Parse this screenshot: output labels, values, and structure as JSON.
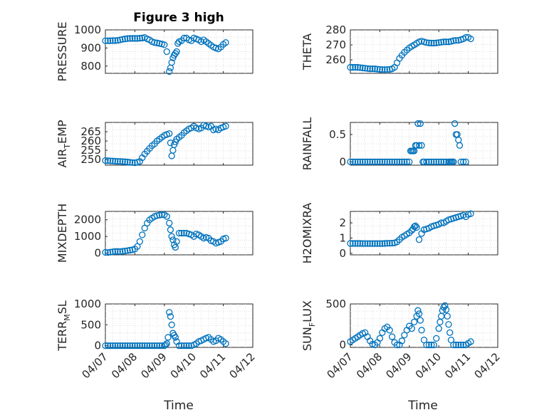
{
  "figure_title": "Figure 3 high",
  "xlabel": "Time",
  "marker_color": "#0072bd",
  "chart_data": [
    {
      "type": "scatter",
      "ylabel_text": "PRESSURE",
      "ylim": [
        760,
        1000
      ],
      "yticks": [
        800,
        900,
        1000
      ],
      "xlim": [
        0,
        5
      ],
      "x": [
        0,
        0.083,
        0.167,
        0.25,
        0.333,
        0.417,
        0.5,
        0.583,
        0.667,
        0.75,
        0.833,
        0.917,
        1.0,
        1.083,
        1.167,
        1.25,
        1.333,
        1.417,
        1.5,
        1.583,
        1.667,
        1.75,
        1.833,
        1.917,
        2.0,
        2.083,
        2.167,
        2.208,
        2.25,
        2.292,
        2.333,
        2.375,
        2.417,
        2.458,
        2.5,
        2.583,
        2.667,
        2.75,
        2.833,
        2.917,
        3.0,
        3.083,
        3.167,
        3.25,
        3.333,
        3.417,
        3.5,
        3.583,
        3.667,
        3.75,
        3.833,
        3.917,
        4.0,
        4.083
      ],
      "y": [
        940,
        940,
        940,
        941,
        941,
        942,
        945,
        948,
        950,
        952,
        953,
        953,
        953,
        953,
        954,
        955,
        958,
        950,
        945,
        935,
        930,
        928,
        925,
        922,
        918,
        880,
        770,
        790,
        820,
        845,
        860,
        870,
        880,
        925,
        935,
        940,
        955,
        955,
        945,
        940,
        955,
        950,
        945,
        935,
        945,
        935,
        925,
        915,
        905,
        900,
        895,
        905,
        920,
        930
      ]
    },
    {
      "type": "scatter",
      "ylabel_text": "THETA",
      "ylim": [
        251,
        280
      ],
      "yticks": [
        260,
        270,
        280
      ],
      "xlim": [
        0,
        5
      ],
      "x": [
        0,
        0.083,
        0.167,
        0.25,
        0.333,
        0.417,
        0.5,
        0.583,
        0.667,
        0.75,
        0.833,
        0.917,
        1.0,
        1.083,
        1.167,
        1.25,
        1.333,
        1.417,
        1.5,
        1.583,
        1.667,
        1.75,
        1.833,
        1.917,
        2.0,
        2.083,
        2.167,
        2.25,
        2.333,
        2.417,
        2.5,
        2.583,
        2.667,
        2.75,
        2.833,
        2.917,
        3.0,
        3.083,
        3.167,
        3.25,
        3.333,
        3.417,
        3.5,
        3.583,
        3.667,
        3.75,
        3.833,
        3.917,
        4.0,
        4.083
      ],
      "y": [
        255,
        255,
        255,
        255,
        254.8,
        254.6,
        254.4,
        254.2,
        254,
        254,
        254,
        253.8,
        253.6,
        253.5,
        253.5,
        253.5,
        253.6,
        254,
        255,
        258,
        261,
        263,
        265,
        266.5,
        268,
        269,
        270,
        271,
        272,
        272.5,
        272,
        271.5,
        271.3,
        271.2,
        271.2,
        271.3,
        271.5,
        271.8,
        272,
        272,
        272,
        272.3,
        272.8,
        273,
        273,
        273.5,
        274,
        275,
        275,
        274
      ]
    },
    {
      "type": "scatter",
      "ylabel_text": "AIR",
      "ylabel_sub": "T",
      "ylabel_rest": "EMP",
      "ylim": [
        247,
        270
      ],
      "yticks": [
        250,
        255,
        260,
        265
      ],
      "xlim": [
        0,
        5
      ],
      "x": [
        0,
        0.083,
        0.167,
        0.25,
        0.333,
        0.417,
        0.5,
        0.583,
        0.667,
        0.75,
        0.833,
        0.917,
        1.0,
        1.083,
        1.167,
        1.25,
        1.333,
        1.417,
        1.5,
        1.583,
        1.667,
        1.75,
        1.833,
        1.917,
        2.0,
        2.083,
        2.167,
        2.208,
        2.25,
        2.292,
        2.333,
        2.375,
        2.417,
        2.5,
        2.583,
        2.667,
        2.75,
        2.833,
        2.917,
        3.0,
        3.083,
        3.167,
        3.25,
        3.333,
        3.417,
        3.5,
        3.583,
        3.667,
        3.75,
        3.833,
        3.917,
        4.0,
        4.083
      ],
      "y": [
        249.5,
        249.4,
        249.3,
        249.2,
        249.1,
        249,
        249,
        248.9,
        248.8,
        248.7,
        248.5,
        248.4,
        248.3,
        248.5,
        249,
        251,
        253,
        254.5,
        256,
        257.5,
        258.5,
        260,
        261,
        262,
        263,
        263.5,
        264,
        259,
        252,
        255,
        258,
        259.5,
        261,
        262,
        263,
        264.5,
        265.5,
        266.5,
        267,
        268,
        267,
        266.5,
        267,
        268.5,
        268,
        267.5,
        268,
        266,
        266.5,
        266,
        267,
        267.5,
        268
      ]
    },
    {
      "type": "scatter",
      "ylabel_text": "RAINFALL",
      "ylim": [
        -0.06,
        0.72
      ],
      "yticks": [
        0,
        0.5
      ],
      "ytick_labels": [
        "0",
        "0.5"
      ],
      "xlim": [
        0,
        5
      ],
      "x": [
        0,
        0.083,
        0.167,
        0.25,
        0.333,
        0.417,
        0.5,
        0.583,
        0.667,
        0.75,
        0.833,
        0.917,
        1.0,
        1.083,
        1.167,
        1.25,
        1.333,
        1.417,
        1.5,
        1.583,
        1.667,
        1.75,
        1.833,
        1.917,
        2.0,
        2.042,
        2.083,
        2.125,
        2.167,
        2.208,
        2.25,
        2.292,
        2.333,
        2.375,
        2.417,
        2.458,
        2.5,
        2.583,
        2.667,
        2.75,
        2.833,
        2.917,
        3.0,
        3.083,
        3.167,
        3.25,
        3.333,
        3.375,
        3.417,
        3.458,
        3.5,
        3.542,
        3.583,
        3.625,
        3.667,
        3.708,
        3.75,
        3.833,
        3.917
      ],
      "y": [
        0,
        0,
        0,
        0,
        0,
        0,
        0,
        0,
        0,
        0,
        0,
        0,
        0,
        0,
        0,
        0,
        0,
        0,
        0,
        0,
        0,
        0,
        0,
        0,
        0,
        0.2,
        0.2,
        0.2,
        0.2,
        0.3,
        0.3,
        0.7,
        0.3,
        0.7,
        0.3,
        0,
        0,
        0,
        0,
        0,
        0,
        0,
        0,
        0,
        0,
        0,
        0,
        0,
        0,
        0,
        0,
        0.7,
        0.5,
        0.5,
        0.4,
        0.3,
        0,
        0,
        0
      ]
    },
    {
      "type": "scatter",
      "ylabel_text": "MIXDEPTH",
      "ylim": [
        -100,
        2500
      ],
      "yticks": [
        0,
        1000,
        2000
      ],
      "xlim": [
        0,
        5
      ],
      "x": [
        0,
        0.083,
        0.167,
        0.25,
        0.333,
        0.417,
        0.5,
        0.583,
        0.667,
        0.75,
        0.833,
        0.917,
        1.0,
        1.083,
        1.167,
        1.25,
        1.333,
        1.417,
        1.5,
        1.583,
        1.667,
        1.75,
        1.833,
        1.917,
        2.0,
        2.083,
        2.167,
        2.208,
        2.25,
        2.292,
        2.333,
        2.375,
        2.417,
        2.5,
        2.583,
        2.667,
        2.75,
        2.833,
        2.917,
        3.0,
        3.083,
        3.167,
        3.25,
        3.333,
        3.417,
        3.5,
        3.583,
        3.667,
        3.75,
        3.833,
        3.917,
        4.0,
        4.083
      ],
      "y": [
        50,
        40,
        60,
        80,
        100,
        100,
        90,
        110,
        130,
        150,
        180,
        200,
        250,
        400,
        700,
        1100,
        1500,
        1800,
        2000,
        2100,
        2200,
        2250,
        2280,
        2300,
        2300,
        2200,
        1800,
        1400,
        1000,
        800,
        500,
        350,
        700,
        1200,
        1200,
        1200,
        1200,
        1150,
        1100,
        1000,
        1150,
        1100,
        1000,
        900,
        950,
        900,
        750,
        700,
        600,
        650,
        700,
        850,
        900
      ]
    },
    {
      "type": "scatter",
      "ylabel_text": "H2OMIXRA",
      "ylim": [
        -0.1,
        2.75
      ],
      "yticks": [
        0,
        1,
        2
      ],
      "xlim": [
        0,
        5
      ],
      "x": [
        0,
        0.083,
        0.167,
        0.25,
        0.333,
        0.417,
        0.5,
        0.583,
        0.667,
        0.75,
        0.833,
        0.917,
        1.0,
        1.083,
        1.167,
        1.25,
        1.333,
        1.417,
        1.5,
        1.583,
        1.667,
        1.75,
        1.833,
        1.917,
        2.0,
        2.083,
        2.125,
        2.167,
        2.208,
        2.25,
        2.333,
        2.417,
        2.5,
        2.583,
        2.667,
        2.75,
        2.833,
        2.917,
        3.0,
        3.083,
        3.167,
        3.25,
        3.333,
        3.417,
        3.5,
        3.583,
        3.667,
        3.75,
        3.833,
        3.917,
        4.0,
        4.083
      ],
      "y": [
        0.65,
        0.65,
        0.65,
        0.65,
        0.65,
        0.64,
        0.64,
        0.64,
        0.64,
        0.64,
        0.64,
        0.64,
        0.64,
        0.64,
        0.65,
        0.66,
        0.66,
        0.67,
        0.68,
        0.75,
        0.9,
        1.05,
        1.15,
        1.25,
        1.35,
        1.5,
        1.6,
        1.75,
        1.8,
        1.7,
        0.9,
        1.3,
        1.55,
        1.6,
        1.65,
        1.75,
        1.8,
        1.85,
        1.9,
        2.0,
        2.0,
        2.1,
        2.2,
        2.25,
        2.3,
        2.35,
        2.4,
        2.45,
        2.5,
        2.4,
        2.55,
        2.6
      ]
    },
    {
      "type": "scatter",
      "ylabel_text": "TERR",
      "ylabel_sub": "M",
      "ylabel_rest": "SL",
      "ylim": [
        -40,
        1000
      ],
      "yticks": [
        0,
        500,
        1000
      ],
      "xlim": [
        0,
        5
      ],
      "x": [
        0,
        0.083,
        0.167,
        0.25,
        0.333,
        0.417,
        0.5,
        0.583,
        0.667,
        0.75,
        0.833,
        0.917,
        1.0,
        1.083,
        1.167,
        1.25,
        1.333,
        1.417,
        1.5,
        1.583,
        1.667,
        1.75,
        1.833,
        1.917,
        2.0,
        2.042,
        2.083,
        2.125,
        2.167,
        2.208,
        2.25,
        2.292,
        2.333,
        2.375,
        2.417,
        2.5,
        2.583,
        2.667,
        2.75,
        2.833,
        2.917,
        3.0,
        3.083,
        3.167,
        3.25,
        3.333,
        3.417,
        3.5,
        3.583,
        3.667,
        3.75,
        3.833,
        3.917,
        4.0,
        4.083
      ],
      "y": [
        0,
        0,
        0,
        0,
        0,
        0,
        0,
        0,
        0,
        0,
        0,
        0,
        0,
        0,
        0,
        0,
        0,
        0,
        0,
        0,
        0,
        0,
        0,
        0,
        0,
        20,
        50,
        200,
        800,
        700,
        500,
        300,
        250,
        200,
        100,
        0,
        0,
        0,
        0,
        0,
        0,
        20,
        50,
        100,
        120,
        150,
        180,
        200,
        150,
        100,
        120,
        180,
        150,
        100,
        50
      ]
    },
    {
      "type": "scatter",
      "ylabel_text": "SUN",
      "ylabel_sub": "F",
      "ylabel_rest": "LUX",
      "ylim": [
        -30,
        500
      ],
      "yticks": [
        0,
        500
      ],
      "xlim": [
        0,
        5
      ],
      "x": [
        0,
        0.083,
        0.167,
        0.25,
        0.333,
        0.417,
        0.5,
        0.583,
        0.667,
        0.75,
        0.833,
        0.917,
        1.0,
        1.083,
        1.167,
        1.25,
        1.333,
        1.417,
        1.5,
        1.583,
        1.667,
        1.75,
        1.833,
        1.917,
        2.0,
        2.083,
        2.167,
        2.25,
        2.292,
        2.333,
        2.375,
        2.417,
        2.5,
        2.583,
        2.667,
        2.75,
        2.833,
        2.917,
        3.0,
        3.042,
        3.083,
        3.125,
        3.167,
        3.208,
        3.25,
        3.292,
        3.333,
        3.375,
        3.417,
        3.5,
        3.583,
        3.667,
        3.75,
        3.833,
        3.917,
        4.0,
        4.083
      ],
      "y": [
        40,
        60,
        80,
        100,
        120,
        140,
        150,
        100,
        50,
        10,
        0,
        30,
        80,
        150,
        200,
        220,
        180,
        100,
        30,
        0,
        0,
        50,
        120,
        180,
        230,
        200,
        280,
        350,
        420,
        380,
        300,
        180,
        60,
        0,
        0,
        0,
        0,
        80,
        200,
        280,
        350,
        420,
        460,
        480,
        430,
        350,
        250,
        150,
        60,
        0,
        0,
        0,
        0,
        0,
        0,
        20,
        40
      ]
    }
  ],
  "xtick_labels": [
    "04/07",
    "04/08",
    "04/09",
    "04/10",
    "04/11",
    "04/12"
  ]
}
